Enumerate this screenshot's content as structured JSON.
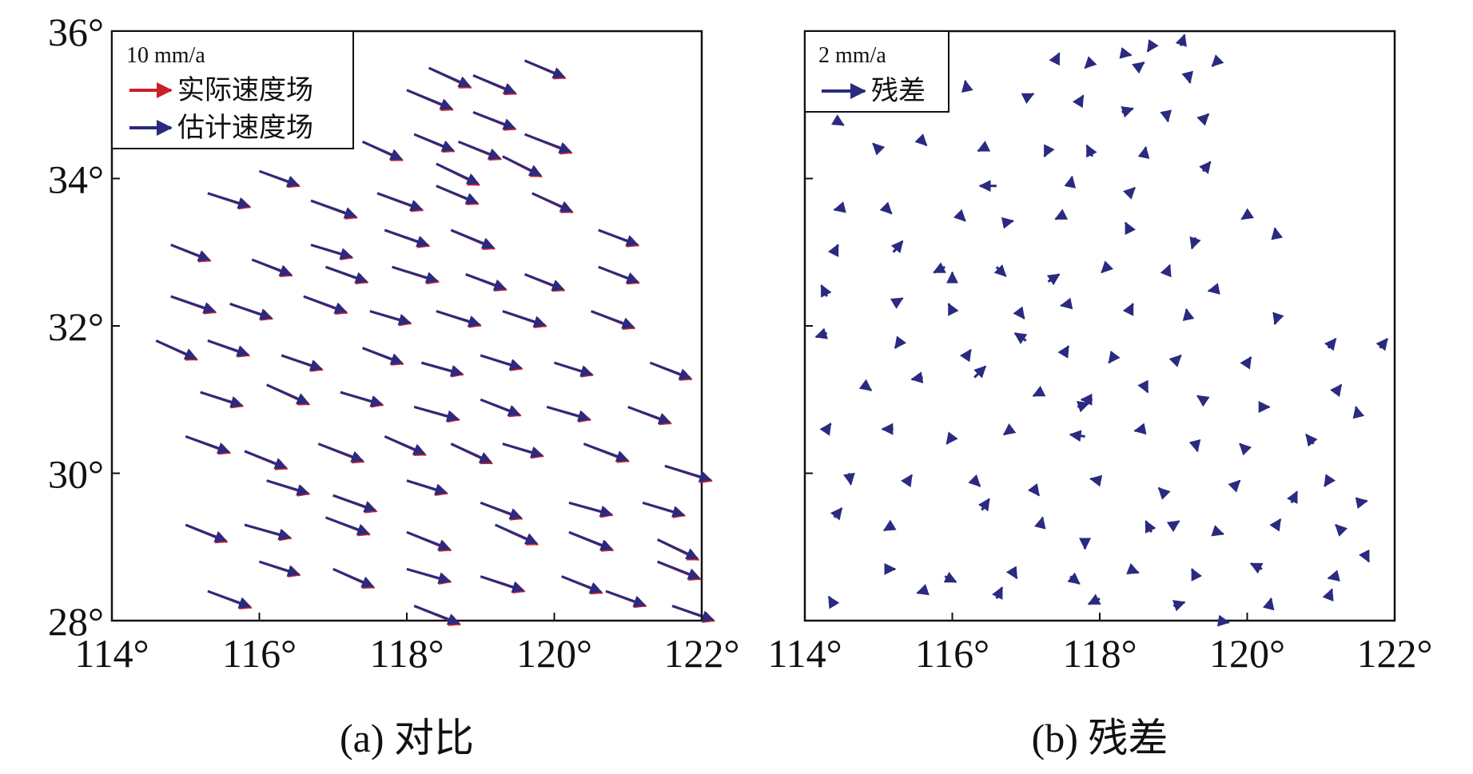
{
  "colors": {
    "actual": "#c8202c",
    "estimated": "#2a2a80",
    "residual": "#2a2a80",
    "frame": "#111111",
    "legend_bg": "#ffffff"
  },
  "chart_data": [
    {
      "type": "quiver",
      "panel_id": "a",
      "caption": "(a) 对比",
      "title": "",
      "xlabel": "",
      "ylabel": "",
      "xlim": [
        114,
        122
      ],
      "ylim": [
        28,
        36
      ],
      "x_ticks": [
        114,
        116,
        118,
        120,
        122
      ],
      "y_ticks": [
        28,
        30,
        32,
        34,
        36
      ],
      "x_tick_labels": [
        "114°",
        "116°",
        "118°",
        "120°",
        "122°"
      ],
      "y_tick_labels": [
        "28°",
        "30°",
        "32°",
        "34°",
        "36°"
      ],
      "legend": {
        "position": "top-left",
        "scale_label": "10 mm/a",
        "scale_mm": 10,
        "scale_deg": 0.65,
        "entries": [
          {
            "label": "实际速度场",
            "series": "actual"
          },
          {
            "label": "估计速度场",
            "series": "estimated"
          }
        ]
      },
      "series": [
        {
          "name": "actual",
          "color_key": "actual"
        },
        {
          "name": "estimated",
          "color_key": "estimated"
        }
      ],
      "vectors": [
        [
          118.3,
          35.5,
          8.5,
          -3.8
        ],
        [
          118.9,
          35.4,
          8.7,
          -3.6
        ],
        [
          119.6,
          35.6,
          8.2,
          -3.4
        ],
        [
          118.0,
          35.2,
          9.3,
          -3.8
        ],
        [
          118.9,
          34.9,
          8.6,
          -3.3
        ],
        [
          118.1,
          34.6,
          8.1,
          -3.3
        ],
        [
          118.7,
          34.5,
          8.6,
          -3.4
        ],
        [
          119.6,
          34.6,
          9.5,
          -3.6
        ],
        [
          117.4,
          34.5,
          8.1,
          -3.6
        ],
        [
          118.4,
          34.2,
          8.7,
          -4.1
        ],
        [
          119.3,
          34.3,
          7.9,
          -3.9
        ],
        [
          116.0,
          34.1,
          8.1,
          -2.9
        ],
        [
          116.7,
          33.7,
          9.3,
          -3.3
        ],
        [
          117.6,
          33.8,
          9.2,
          -3.3
        ],
        [
          118.4,
          33.9,
          8.5,
          -3.5
        ],
        [
          119.7,
          33.8,
          8.2,
          -3.7
        ],
        [
          115.3,
          33.8,
          8.6,
          -2.7
        ],
        [
          116.7,
          33.1,
          8.4,
          -2.5
        ],
        [
          117.7,
          33.3,
          9.0,
          -3.1
        ],
        [
          118.6,
          33.3,
          8.8,
          -3.6
        ],
        [
          120.6,
          33.3,
          8.1,
          -3.0
        ],
        [
          114.8,
          33.1,
          8.0,
          -3.1
        ],
        [
          115.9,
          32.9,
          8.1,
          -3.1
        ],
        [
          116.9,
          32.8,
          8.5,
          -3.0
        ],
        [
          117.8,
          32.8,
          9.4,
          -2.9
        ],
        [
          118.8,
          32.7,
          8.2,
          -3.0
        ],
        [
          119.6,
          32.7,
          8.0,
          -3.1
        ],
        [
          120.6,
          32.8,
          8.2,
          -3.1
        ],
        [
          114.8,
          32.4,
          9.1,
          -3.1
        ],
        [
          115.6,
          32.3,
          8.6,
          -2.9
        ],
        [
          116.6,
          32.4,
          8.8,
          -3.2
        ],
        [
          117.5,
          32.2,
          8.3,
          -2.4
        ],
        [
          118.4,
          32.2,
          9.0,
          -2.8
        ],
        [
          119.3,
          32.2,
          8.8,
          -2.9
        ],
        [
          120.5,
          32.2,
          8.8,
          -3.3
        ],
        [
          114.6,
          31.8,
          8.3,
          -3.7
        ],
        [
          115.3,
          31.8,
          8.4,
          -2.9
        ],
        [
          116.3,
          31.6,
          8.3,
          -2.8
        ],
        [
          117.4,
          31.7,
          8.2,
          -3.1
        ],
        [
          118.2,
          31.5,
          8.4,
          -2.3
        ],
        [
          119.0,
          31.6,
          8.4,
          -2.6
        ],
        [
          120.0,
          31.5,
          7.8,
          -2.4
        ],
        [
          121.3,
          31.5,
          8.4,
          -3.2
        ],
        [
          115.2,
          31.1,
          8.6,
          -2.7
        ],
        [
          116.1,
          31.2,
          8.6,
          -3.8
        ],
        [
          117.1,
          31.1,
          8.6,
          -2.5
        ],
        [
          118.1,
          30.9,
          9.1,
          -2.5
        ],
        [
          119.0,
          31.0,
          8.1,
          -3.1
        ],
        [
          119.9,
          30.9,
          8.8,
          -2.5
        ],
        [
          121.0,
          30.9,
          8.7,
          -3.2
        ],
        [
          115.0,
          30.5,
          9.0,
          -3.2
        ],
        [
          115.8,
          30.3,
          8.6,
          -3.4
        ],
        [
          116.8,
          30.4,
          9.2,
          -3.5
        ],
        [
          117.7,
          30.5,
          8.3,
          -3.6
        ],
        [
          118.6,
          30.4,
          8.3,
          -3.8
        ],
        [
          119.3,
          30.4,
          8.2,
          -2.4
        ],
        [
          120.4,
          30.4,
          9.1,
          -3.4
        ],
        [
          121.5,
          30.1,
          9.5,
          -2.9
        ],
        [
          116.1,
          29.9,
          8.6,
          -2.6
        ],
        [
          117.0,
          29.7,
          8.8,
          -3.1
        ],
        [
          118.0,
          29.9,
          8.2,
          -2.5
        ],
        [
          119.0,
          29.6,
          8.4,
          -3.1
        ],
        [
          120.2,
          29.6,
          8.8,
          -2.4
        ],
        [
          121.2,
          29.6,
          8.5,
          -2.5
        ],
        [
          115.0,
          29.3,
          8.4,
          -3.3
        ],
        [
          115.8,
          29.3,
          9.4,
          -2.6
        ],
        [
          116.9,
          29.4,
          8.9,
          -3.3
        ],
        [
          118.0,
          29.2,
          8.9,
          -3.5
        ],
        [
          119.2,
          29.3,
          8.6,
          -3.8
        ],
        [
          120.2,
          29.2,
          8.9,
          -3.5
        ],
        [
          121.4,
          29.1,
          8.3,
          -3.9
        ],
        [
          116.0,
          28.8,
          8.2,
          -2.6
        ],
        [
          117.0,
          28.7,
          8.3,
          -3.6
        ],
        [
          118.0,
          28.7,
          8.9,
          -2.5
        ],
        [
          119.0,
          28.6,
          8.9,
          -2.9
        ],
        [
          120.1,
          28.6,
          8.2,
          -3.2
        ],
        [
          121.4,
          28.8,
          8.7,
          -3.4
        ],
        [
          115.3,
          28.4,
          8.8,
          -3.2
        ],
        [
          118.1,
          28.2,
          9.3,
          -3.6
        ],
        [
          120.7,
          28.4,
          8.1,
          -2.9
        ],
        [
          121.6,
          28.2,
          8.5,
          -2.9
        ]
      ]
    },
    {
      "type": "quiver",
      "panel_id": "b",
      "caption": "(b) 残差",
      "title": "",
      "xlabel": "",
      "ylabel": "",
      "xlim": [
        114,
        122
      ],
      "ylim": [
        28,
        36
      ],
      "x_ticks": [
        114,
        116,
        118,
        120,
        122
      ],
      "y_ticks": [
        28,
        30,
        32,
        34,
        36
      ],
      "x_tick_labels": [
        "114°",
        "116°",
        "118°",
        "120°",
        "122°"
      ],
      "legend": {
        "position": "top-left",
        "scale_label": "2 mm/a",
        "scale_mm": 2,
        "scale_deg": 0.5,
        "entries": [
          {
            "label": "残差",
            "series": "residual"
          }
        ]
      },
      "series": [
        {
          "name": "residual",
          "color_key": "residual"
        }
      ],
      "vectors": [
        [
          118.3,
          35.7,
          0.5,
          -0.1
        ],
        [
          118.7,
          35.8,
          -0.2,
          -0.3
        ],
        [
          119.1,
          35.8,
          0.2,
          0.6
        ],
        [
          119.6,
          35.6,
          -0.3,
          -0.3
        ],
        [
          117.4,
          35.6,
          0.2,
          0.4
        ],
        [
          117.9,
          35.6,
          -0.4,
          -0.4
        ],
        [
          118.5,
          35.5,
          0.4,
          0.3
        ],
        [
          119.2,
          35.4,
          0.1,
          -0.4
        ],
        [
          116.2,
          35.2,
          -0.1,
          0.5
        ],
        [
          117.0,
          35.1,
          0.4,
          0.2
        ],
        [
          117.7,
          35.0,
          0.3,
          0.5
        ],
        [
          118.3,
          34.9,
          0.6,
          0.2
        ],
        [
          118.9,
          34.9,
          0.1,
          -0.5
        ],
        [
          119.4,
          34.8,
          0.3,
          0.3
        ],
        [
          114.4,
          34.8,
          0.5,
          -0.3
        ],
        [
          115.0,
          34.4,
          -0.3,
          0.3
        ],
        [
          115.6,
          34.5,
          0.2,
          -0.2
        ],
        [
          116.4,
          34.4,
          -0.2,
          -0.1
        ],
        [
          117.3,
          34.4,
          -0.2,
          -0.4
        ],
        [
          117.9,
          34.3,
          -0.3,
          0.6
        ],
        [
          118.6,
          34.3,
          0.1,
          0.5
        ],
        [
          119.4,
          34.1,
          0.4,
          0.5
        ],
        [
          116.6,
          33.9,
          -0.9,
          0.0
        ],
        [
          117.6,
          33.9,
          0.1,
          0.5
        ],
        [
          118.4,
          33.8,
          0.3,
          0.3
        ],
        [
          114.5,
          33.6,
          -0.4,
          -0.1
        ],
        [
          115.1,
          33.6,
          0.3,
          -0.3
        ],
        [
          116.1,
          33.5,
          0.3,
          -0.3
        ],
        [
          116.7,
          33.4,
          0.5,
          0.1
        ],
        [
          117.5,
          33.5,
          -0.4,
          -0.2
        ],
        [
          118.4,
          33.3,
          -0.2,
          0.4
        ],
        [
          119.3,
          33.2,
          -0.2,
          -0.6
        ],
        [
          120.0,
          33.5,
          -0.3,
          -0.2
        ],
        [
          114.4,
          33.0,
          0.2,
          0.4
        ],
        [
          115.2,
          33.0,
          0.5,
          0.6
        ],
        [
          115.9,
          32.8,
          -0.6,
          -0.3
        ],
        [
          116.6,
          32.8,
          0.5,
          -0.5
        ],
        [
          117.3,
          32.6,
          0.6,
          0.4
        ],
        [
          118.1,
          32.8,
          -0.3,
          -0.3
        ],
        [
          118.9,
          32.7,
          0.2,
          0.5
        ],
        [
          119.6,
          32.5,
          -0.5,
          -0.1
        ],
        [
          120.4,
          33.2,
          -0.1,
          0.5
        ],
        [
          114.3,
          32.4,
          -0.3,
          0.6
        ],
        [
          115.2,
          32.3,
          0.5,
          0.3
        ],
        [
          116.0,
          32.2,
          -0.2,
          0.4
        ],
        [
          116.9,
          32.2,
          0.3,
          -0.4
        ],
        [
          117.6,
          32.3,
          -0.5,
          -0.1
        ],
        [
          118.4,
          32.2,
          0.2,
          0.4
        ],
        [
          119.2,
          32.1,
          -0.1,
          0.5
        ],
        [
          120.4,
          32.1,
          -0.1,
          -0.3
        ],
        [
          114.3,
          31.9,
          -0.6,
          -0.2
        ],
        [
          115.3,
          31.8,
          -0.3,
          -0.4
        ],
        [
          116.2,
          31.6,
          0.2,
          0.3
        ],
        [
          117.0,
          31.8,
          -0.6,
          0.4
        ],
        [
          117.5,
          31.6,
          0.3,
          0.5
        ],
        [
          118.2,
          31.6,
          -0.3,
          -0.4
        ],
        [
          119.0,
          31.5,
          0.4,
          0.4
        ],
        [
          120.0,
          31.5,
          0.2,
          0.3
        ],
        [
          121.1,
          31.7,
          0.4,
          0.5
        ],
        [
          121.8,
          31.7,
          0.4,
          0.5
        ],
        [
          114.8,
          31.2,
          0.4,
          -0.3
        ],
        [
          115.6,
          31.3,
          -0.6,
          -0.1
        ],
        [
          116.3,
          31.3,
          0.6,
          0.6
        ],
        [
          117.2,
          31.1,
          -0.4,
          -0.2
        ],
        [
          117.9,
          31.0,
          -0.6,
          0.0
        ],
        [
          118.6,
          31.2,
          0.2,
          -0.4
        ],
        [
          119.4,
          31.0,
          -0.3,
          0.2
        ],
        [
          120.2,
          30.9,
          0.4,
          0.0
        ],
        [
          121.2,
          31.1,
          0.3,
          0.4
        ],
        [
          114.3,
          30.6,
          0.2,
          0.3
        ],
        [
          115.2,
          30.6,
          -0.6,
          0.0
        ],
        [
          116.0,
          30.5,
          -0.3,
          -0.4
        ],
        [
          116.8,
          30.6,
          -0.4,
          -0.3
        ],
        [
          117.8,
          30.5,
          -0.8,
          0.1
        ],
        [
          118.6,
          30.6,
          -0.5,
          -0.1
        ],
        [
          119.3,
          30.4,
          0.1,
          -0.4
        ],
        [
          120.0,
          30.3,
          -0.4,
          0.4
        ],
        [
          120.9,
          30.4,
          -0.4,
          0.5
        ],
        [
          114.6,
          30.0,
          0.1,
          -0.6
        ],
        [
          115.4,
          29.9,
          0.2,
          0.3
        ],
        [
          116.3,
          29.9,
          0.3,
          -0.3
        ],
        [
          117.1,
          29.8,
          0.3,
          -0.4
        ],
        [
          118.0,
          29.9,
          -0.5,
          0.1
        ],
        [
          118.9,
          29.7,
          -0.4,
          0.4
        ],
        [
          119.8,
          29.8,
          0.4,
          0.4
        ],
        [
          120.6,
          29.6,
          0.3,
          0.6
        ],
        [
          121.5,
          29.6,
          0.5,
          0.1
        ],
        [
          114.4,
          29.4,
          0.4,
          0.5
        ],
        [
          115.2,
          29.3,
          -0.5,
          -0.3
        ],
        [
          116.4,
          29.5,
          0.4,
          0.6
        ],
        [
          117.2,
          29.3,
          0.1,
          0.4
        ],
        [
          117.8,
          29.1,
          0.0,
          -0.5
        ],
        [
          118.7,
          29.2,
          -0.3,
          0.6
        ],
        [
          119.6,
          29.2,
          0.3,
          -0.1
        ],
        [
          120.4,
          29.3,
          0.2,
          0.3
        ],
        [
          121.3,
          29.2,
          -0.4,
          0.4
        ],
        [
          115.1,
          28.7,
          0.5,
          0.0
        ],
        [
          115.9,
          28.6,
          0.6,
          -0.3
        ],
        [
          116.8,
          28.7,
          0.3,
          -0.5
        ],
        [
          117.6,
          28.6,
          0.5,
          -0.4
        ],
        [
          118.4,
          28.7,
          0.5,
          -0.2
        ],
        [
          119.3,
          28.6,
          -0.2,
          0.4
        ],
        [
          120.2,
          28.7,
          -0.6,
          0.3
        ],
        [
          121.2,
          28.6,
          -0.4,
          -0.1
        ],
        [
          114.4,
          28.2,
          -0.3,
          0.5
        ],
        [
          115.6,
          28.4,
          -0.3,
          -0.1
        ],
        [
          116.6,
          28.3,
          0.3,
          0.6
        ],
        [
          118.0,
          28.3,
          -0.6,
          -0.3
        ],
        [
          119.0,
          28.2,
          0.6,
          0.2
        ],
        [
          120.3,
          28.2,
          0.1,
          0.4
        ],
        [
          121.1,
          28.3,
          0.2,
          0.5
        ],
        [
          121.6,
          28.9,
          0.2,
          -0.4
        ],
        [
          119.6,
          28.0,
          0.6,
          -0.1
        ],
        [
          116.0,
          32.6,
          0.0,
          0.5
        ],
        [
          117.7,
          30.9,
          0.6,
          0.2
        ],
        [
          119.0,
          29.3,
          0.3,
          0.2
        ],
        [
          121.5,
          30.8,
          -0.1,
          0.4
        ],
        [
          121.1,
          29.9,
          -0.2,
          -0.3
        ]
      ]
    }
  ]
}
